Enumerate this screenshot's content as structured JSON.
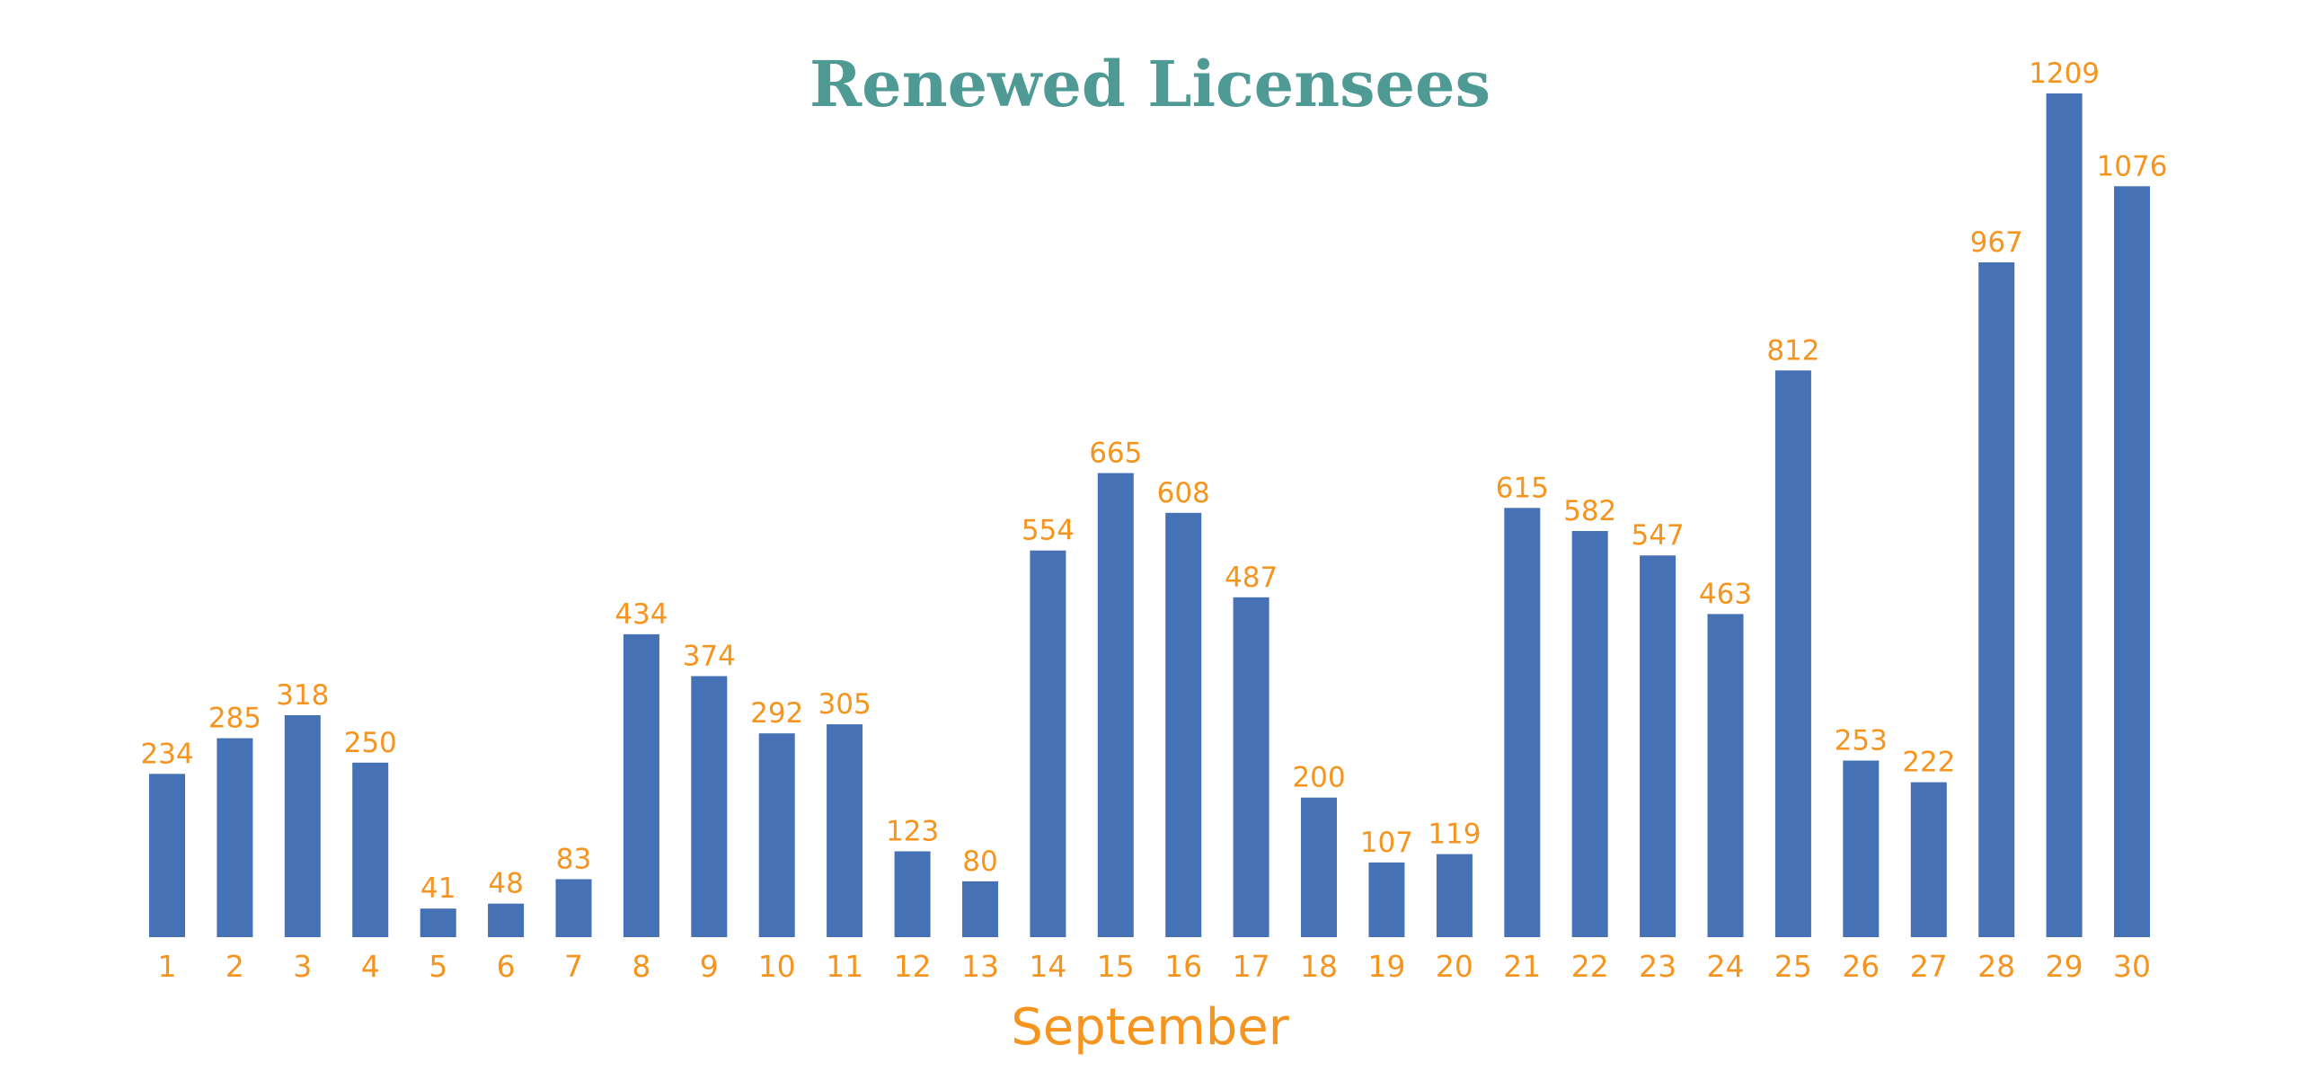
{
  "chart_data": {
    "type": "bar",
    "title": "Renewed Licensees",
    "xlabel": "September",
    "ylabel": "",
    "categories": [
      "1",
      "2",
      "3",
      "4",
      "5",
      "6",
      "7",
      "8",
      "9",
      "10",
      "11",
      "12",
      "13",
      "14",
      "15",
      "16",
      "17",
      "18",
      "19",
      "20",
      "21",
      "22",
      "23",
      "24",
      "25",
      "26",
      "27",
      "28",
      "29",
      "30"
    ],
    "series": [
      {
        "values": [
          234,
          285,
          318,
          250,
          41,
          48,
          83,
          434,
          374,
          292,
          305,
          123,
          80,
          554,
          665,
          608,
          487,
          200,
          107,
          119,
          615,
          582,
          547,
          463,
          812,
          253,
          222,
          967,
          1209,
          1076
        ]
      }
    ],
    "data_labels": true,
    "grid": false,
    "legend": "none",
    "colors": {
      "bar": "#4671b5",
      "title": "#4f9a94",
      "labels": "#f5941f"
    }
  }
}
